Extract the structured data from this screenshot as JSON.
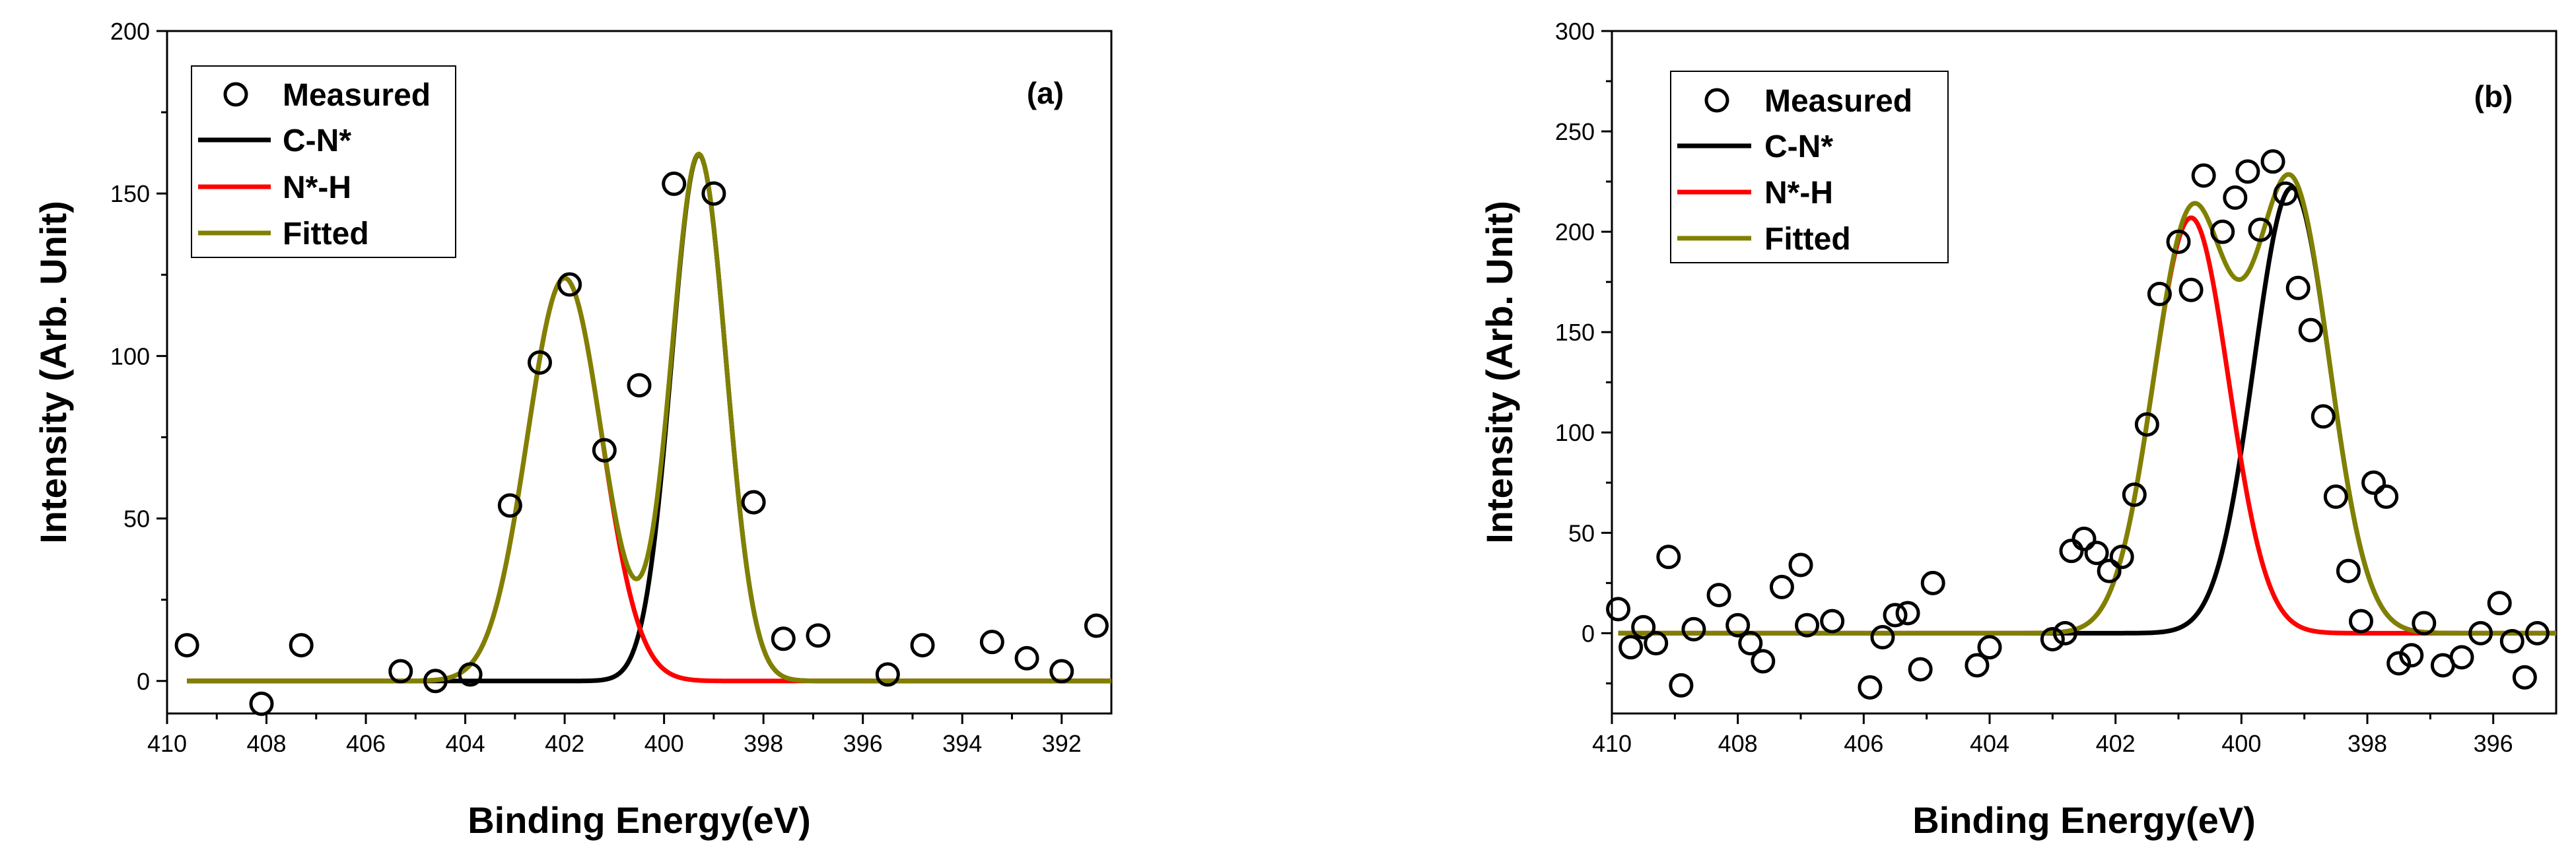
{
  "chart_data": [
    {
      "type": "scatter",
      "panel_label": "(a)",
      "xlabel": "Binding Energy(eV)",
      "ylabel": "Intensity (Arb. Unit)",
      "xlim": [
        410,
        391
      ],
      "ylim": [
        -10,
        200
      ],
      "xticks": [
        410,
        408,
        406,
        404,
        402,
        400,
        398,
        396,
        394,
        392
      ],
      "yticks": [
        0,
        50,
        100,
        150,
        200
      ],
      "legend": [
        "Measured",
        "C-N*",
        "N*-H",
        "Fitted"
      ],
      "legend_position": "top-left",
      "measured": {
        "x": [
          409.6,
          408.1,
          407.3,
          405.3,
          404.6,
          403.9,
          403.1,
          402.5,
          401.9,
          401.2,
          400.5,
          399.8,
          399.0,
          398.2,
          397.6,
          396.9,
          395.5,
          394.8,
          393.4,
          392.7,
          392.0,
          391.3
        ],
        "y": [
          11,
          -7,
          11,
          3,
          0,
          2,
          54,
          98,
          122,
          71,
          91,
          153,
          150,
          55,
          13,
          14,
          2,
          11,
          12,
          7,
          3,
          17
        ]
      },
      "series": [
        {
          "name": "C-N*",
          "color": "#000000",
          "center": 399.3,
          "amplitude": 162,
          "sigma": 0.55
        },
        {
          "name": "N*-H",
          "color": "#ff0000",
          "center": 402.0,
          "amplitude": 124,
          "sigma": 0.75
        },
        {
          "name": "Fitted",
          "color": "#808000"
        }
      ]
    },
    {
      "type": "scatter",
      "panel_label": "(b)",
      "xlabel": "Binding Energy(eV)",
      "ylabel": "Intensity (Arb. Unit)",
      "xlim": [
        410,
        395
      ],
      "ylim": [
        -40,
        300
      ],
      "xticks": [
        410,
        408,
        406,
        404,
        402,
        400,
        398,
        396
      ],
      "yticks": [
        0,
        50,
        100,
        150,
        200,
        250,
        300
      ],
      "legend": [
        "Measured",
        "C-N*",
        "N*-H",
        "Fitted"
      ],
      "legend_position": "top-left",
      "measured": {
        "x": [
          409.9,
          409.7,
          409.5,
          409.3,
          409.1,
          408.9,
          408.7,
          408.3,
          408.0,
          407.8,
          407.6,
          407.3,
          407.0,
          406.9,
          406.5,
          405.9,
          405.7,
          405.5,
          405.3,
          405.1,
          404.9,
          404.2,
          404.0,
          403.0,
          402.8,
          402.7,
          402.5,
          402.3,
          402.1,
          401.9,
          401.7,
          401.5,
          401.3,
          401.0,
          400.8,
          400.6,
          400.3,
          400.1,
          399.9,
          399.7,
          399.5,
          399.3,
          399.1,
          398.9,
          398.7,
          398.5,
          398.3,
          398.1,
          397.9,
          397.7,
          397.5,
          397.3,
          397.1,
          396.8,
          396.5,
          396.2,
          395.9,
          395.7,
          395.5,
          395.3
        ],
        "y": [
          12,
          -7,
          3,
          -5,
          38,
          -26,
          2,
          19,
          4,
          -5,
          -14,
          23,
          34,
          4,
          6,
          -27,
          -2,
          9,
          10,
          -18,
          25,
          -16,
          -7,
          -3,
          0,
          41,
          47,
          40,
          31,
          38,
          69,
          104,
          169,
          195,
          171,
          228,
          200,
          217,
          230,
          201,
          235,
          219,
          172,
          151,
          108,
          68,
          31,
          6,
          75,
          68,
          -15,
          -11,
          5,
          -16,
          -12,
          0,
          15,
          -4,
          -22,
          0
        ]
      },
      "series": [
        {
          "name": "C-N*",
          "color": "#000000",
          "center": 399.2,
          "amplitude": 222,
          "sigma": 0.6
        },
        {
          "name": "N*-H",
          "color": "#ff0000",
          "center": 400.8,
          "amplitude": 207,
          "sigma": 0.6
        },
        {
          "name": "Fitted",
          "color": "#808000"
        }
      ]
    }
  ]
}
